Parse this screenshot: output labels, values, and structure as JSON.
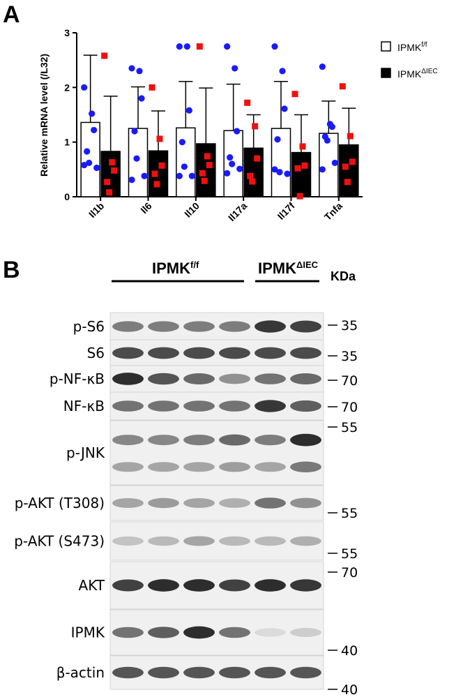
{
  "panel_a": {
    "letter": "A",
    "legend": [
      {
        "base": "IPMK",
        "sup": "f/f",
        "fill": "#ffffff"
      },
      {
        "base": "IPMK",
        "sup": "ΔIEC",
        "fill": "#000000"
      }
    ]
  },
  "chart_data": {
    "type": "bar",
    "ylabel": "Relative mRNA level (/L32)",
    "ylim": [
      0,
      3
    ],
    "yticks": [
      "0",
      "1",
      "2",
      "3"
    ],
    "categories": [
      "Il1b",
      "Il6",
      "Il10",
      "Il17a",
      "Il17f",
      "Tnfa"
    ],
    "series": [
      {
        "name": "IPMKf/f",
        "color": "#ffffff",
        "point_color": "#1a1aff",
        "values": [
          1.36,
          1.25,
          1.26,
          1.21,
          1.25,
          1.16
        ],
        "sd": [
          1.23,
          0.76,
          0.85,
          0.85,
          0.86,
          0.59
        ],
        "points": [
          [
            2.0,
            1.52,
            1.22,
            0.83,
            0.62,
            0.53,
            0.58
          ],
          [
            2.35,
            2.3,
            1.8,
            1.2,
            0.7,
            0.38,
            0.31
          ],
          [
            2.75,
            2.75,
            1.58,
            1.0,
            0.55,
            0.38,
            0.38
          ],
          [
            2.75,
            2.35,
            1.2,
            0.72,
            0.6,
            0.51,
            0.43
          ],
          [
            2.75,
            2.3,
            1.61,
            1.05,
            0.45,
            0.42,
            0.5
          ],
          [
            2.38,
            1.33,
            1.28,
            1.1,
            1.03,
            0.62,
            0.5
          ]
        ]
      },
      {
        "name": "IPMKΔIEC",
        "color": "#000000",
        "point_color": "#ee1111",
        "values": [
          0.83,
          0.84,
          0.97,
          0.89,
          0.81,
          0.95
        ],
        "sd": [
          1.01,
          0.73,
          1.02,
          0.61,
          0.69,
          0.67
        ],
        "points": [
          [
            2.58,
            0.63,
            0.48,
            0.27,
            0.08
          ],
          [
            2.0,
            1.06,
            0.57,
            0.42,
            0.23
          ],
          [
            2.75,
            0.74,
            0.58,
            0.43,
            0.29
          ],
          [
            1.72,
            1.29,
            0.7,
            0.38,
            0.28
          ],
          [
            1.88,
            0.92,
            0.57,
            0.52,
            0.01
          ],
          [
            2.02,
            1.11,
            0.64,
            0.55,
            0.27
          ]
        ]
      }
    ]
  },
  "panel_b": {
    "letter": "B",
    "group1": {
      "base": "IPMK",
      "sup": "f/f"
    },
    "group2": {
      "base": "IPMK",
      "sup": "ΔIEC"
    },
    "kda_header": "KDa",
    "blots": [
      {
        "label": "p-S6",
        "bands": 1,
        "intensity": [
          0.55,
          0.55,
          0.55,
          0.55,
          0.9,
          0.85
        ]
      },
      {
        "label": "S6",
        "bands": 1,
        "intensity": [
          0.8,
          0.8,
          0.8,
          0.8,
          0.8,
          0.8
        ]
      },
      {
        "label": "p-NF-κB",
        "bands": 1,
        "intensity": [
          0.95,
          0.75,
          0.65,
          0.45,
          0.6,
          0.65
        ]
      },
      {
        "label": "NF-κB",
        "bands": 1,
        "intensity": [
          0.6,
          0.6,
          0.6,
          0.6,
          0.9,
          0.7
        ]
      },
      {
        "label": "p-JNK",
        "bands": 2,
        "intensity": [
          0.5,
          0.5,
          0.55,
          0.65,
          0.55,
          0.95
        ]
      },
      {
        "label": "p-AKT (T308)",
        "bands": 1,
        "intensity": [
          0.35,
          0.4,
          0.35,
          0.3,
          0.6,
          0.45
        ]
      },
      {
        "label": "p-AKT (S473)",
        "bands": 1,
        "intensity": [
          0.2,
          0.25,
          0.35,
          0.25,
          0.25,
          0.3
        ]
      },
      {
        "label": "AKT",
        "bands": 1,
        "intensity": [
          0.85,
          0.95,
          0.95,
          0.85,
          0.95,
          0.9
        ]
      },
      {
        "label": "IPMK",
        "bands": 1,
        "intensity": [
          0.6,
          0.7,
          0.95,
          0.6,
          0.08,
          0.15
        ]
      },
      {
        "label": "β-actin",
        "bands": 1,
        "intensity": [
          0.75,
          0.75,
          0.75,
          0.75,
          0.75,
          0.75
        ]
      }
    ],
    "markers": [
      "35",
      "35",
      "70",
      "70",
      "55",
      "55",
      "55",
      "70",
      "40",
      "40"
    ]
  }
}
